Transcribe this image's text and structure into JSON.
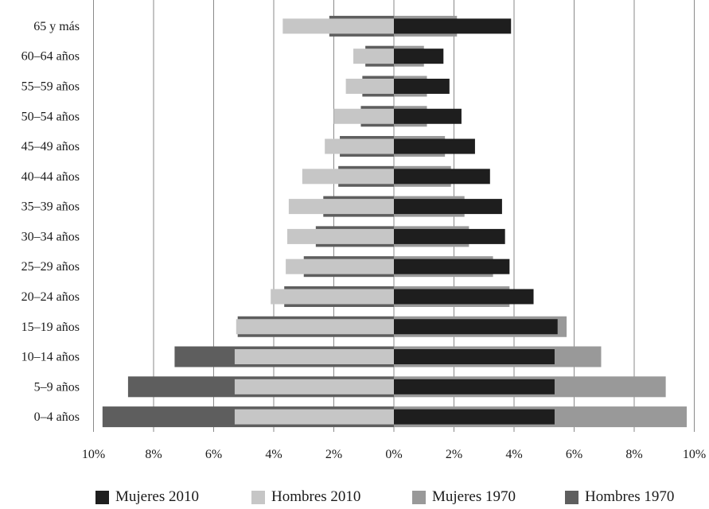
{
  "chart_data": {
    "type": "bar",
    "orientation": "horizontal-diverging",
    "categories": [
      "0–4 años",
      "5–9 años",
      "10–14 años",
      "15–19 años",
      "20–24 años",
      "25–29 años",
      "30–34 años",
      "35–39 años",
      "40–44 años",
      "45–49 años",
      "50–54 años",
      "55–59 años",
      "60–64 años",
      "65 y más"
    ],
    "x_ticks": [
      "10%",
      "8%",
      "6%",
      "4%",
      "2%",
      "0%",
      "2%",
      "4%",
      "6%",
      "8%",
      "10%"
    ],
    "xlim": [
      -10,
      10
    ],
    "grid": true,
    "legend_position": "bottom",
    "series": [
      {
        "name": "Hombres 1970",
        "side": "left",
        "color": "#5e5e5e",
        "values": [
          9.7,
          8.85,
          7.3,
          5.2,
          3.65,
          3.0,
          2.6,
          2.35,
          1.85,
          1.8,
          1.1,
          1.05,
          0.95,
          2.15
        ]
      },
      {
        "name": "Mujeres 1970",
        "side": "right",
        "color": "#999999",
        "values": [
          9.75,
          9.05,
          6.9,
          5.75,
          3.85,
          3.3,
          2.5,
          2.35,
          1.9,
          1.7,
          1.1,
          1.1,
          1.0,
          2.1
        ]
      },
      {
        "name": "Hombres 2010",
        "side": "left",
        "color": "#c6c6c6",
        "values": [
          5.3,
          5.3,
          5.3,
          5.25,
          4.1,
          3.6,
          3.55,
          3.5,
          3.05,
          2.3,
          2.0,
          1.6,
          1.35,
          3.7
        ]
      },
      {
        "name": "Mujeres 2010",
        "side": "right",
        "color": "#1e1e1e",
        "values": [
          5.35,
          5.35,
          5.35,
          5.45,
          4.65,
          3.85,
          3.7,
          3.6,
          3.2,
          2.7,
          2.25,
          1.85,
          1.65,
          3.9
        ]
      }
    ],
    "legend": [
      {
        "label": "Mujeres 2010",
        "color": "#1e1e1e"
      },
      {
        "label": "Hombres 2010",
        "color": "#c6c6c6"
      },
      {
        "label": "Mujeres 1970",
        "color": "#999999"
      },
      {
        "label": "Hombres 1970",
        "color": "#5e5e5e"
      }
    ]
  }
}
